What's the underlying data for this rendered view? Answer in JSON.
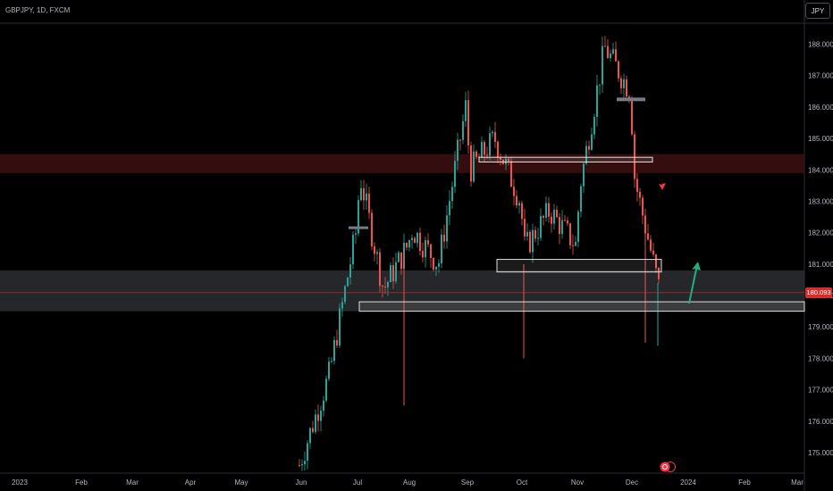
{
  "symbol": "GBPJPY, 1D, FXCM",
  "currency_button": "JPY",
  "last_price_label": "180.093",
  "colors": {
    "background": "#000000",
    "up": "#26a69a",
    "down": "#ef5350",
    "resistance_zone": "#3a1010",
    "support_zone": "#2a2b2f",
    "box_fill": "#d9d9d9",
    "arrow_down": "#f23645",
    "arrow_up": "#22ab7d",
    "price_line": "#d32f2f"
  },
  "chart_data": {
    "type": "candlestick",
    "title": "GBPJPY, 1D, FXCM",
    "y_axis_labels": [
      "188.000",
      "187.000",
      "186.000",
      "185.000",
      "184.000",
      "183.000",
      "182.000",
      "181.000",
      "180.000",
      "179.000",
      "178.000",
      "177.000",
      "176.000",
      "175.000"
    ],
    "x_axis_labels": [
      "2023",
      "Feb",
      "Mar",
      "Apr",
      "May",
      "Jun",
      "Jul",
      "Aug",
      "Sep",
      "Oct",
      "Nov",
      "Dec",
      "2024",
      "Feb",
      "Mar"
    ],
    "ylim": [
      174.5,
      188.7
    ],
    "last_price": 180.093,
    "zones": [
      {
        "name": "resistance-zone",
        "from": 183.9,
        "to": 184.5
      },
      {
        "name": "support-zone",
        "from": 179.5,
        "to": 180.8
      }
    ],
    "boxes": [
      {
        "name": "box-upper",
        "start": "Sep",
        "end": "Dec",
        "from": 184.25,
        "to": 184.4
      },
      {
        "name": "box-middle",
        "start": "Sep-end",
        "end": "Dec-mid",
        "from": 180.75,
        "to": 181.15
      },
      {
        "name": "box-lower",
        "start": "Jul",
        "end": "2024-end",
        "from": 179.5,
        "to": 179.8
      }
    ],
    "path": [
      [
        "May-end",
        174.6
      ],
      [
        "Jun-mid",
        177.5
      ],
      [
        "Jun-end",
        182.0
      ],
      [
        "Jul-start",
        183.8
      ],
      [
        "Jul-mid",
        180.2
      ],
      [
        "Jul-end",
        181.6
      ],
      [
        "Aug-start",
        182.1
      ],
      [
        "Aug-mid",
        181.0
      ],
      [
        "Aug-end",
        186.0
      ],
      [
        "Sep-start",
        184.0
      ],
      [
        "Sep-mid",
        185.0
      ],
      [
        "Sep-end",
        183.0
      ],
      [
        "Oct-start",
        181.5
      ],
      [
        "Oct-mid",
        182.7
      ],
      [
        "Oct-end",
        181.6
      ],
      [
        "Nov-start",
        183.5
      ],
      [
        "Nov-mid",
        187.9
      ],
      [
        "Nov-end",
        186.5
      ],
      [
        "Dec-start",
        183.7
      ],
      [
        "Dec-mid",
        180.1
      ]
    ]
  }
}
